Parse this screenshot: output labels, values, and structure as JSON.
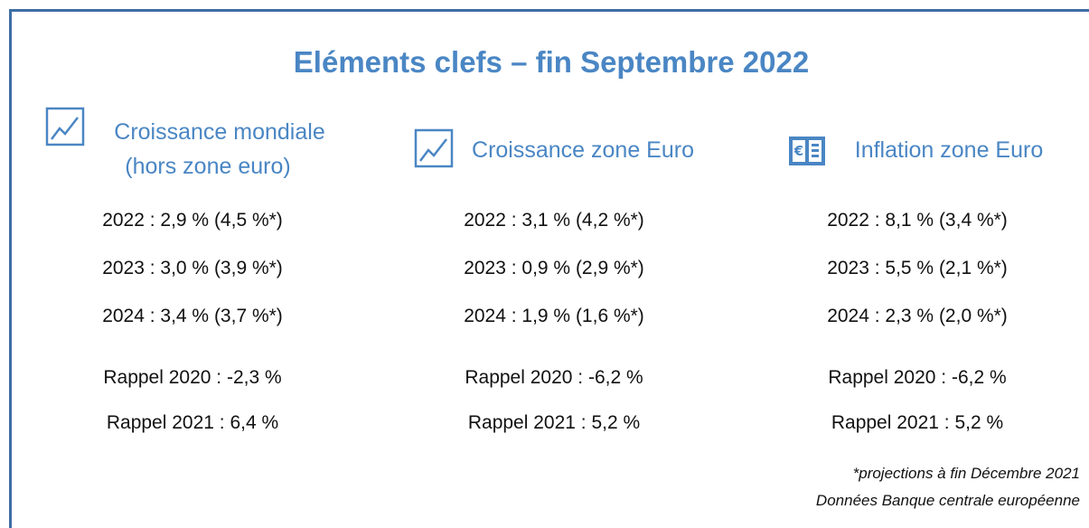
{
  "header": {
    "title": "Eléments clefs – fin Septembre 2022"
  },
  "columns": [
    {
      "title": [
        "Croissance mondiale",
        "(hors zone euro)"
      ],
      "rows": [
        "2022 : 2,9 % (4,5 %*)",
        "2023 : 3,0 % (3,9 %*)",
        "2024 : 3,4 % (3,7 %*)"
      ],
      "reminders": [
        "Rappel 2020 : -2,3 %",
        "Rappel 2021 : 6,4 %"
      ]
    },
    {
      "title": [
        "Croissance zone Euro"
      ],
      "rows": [
        "2022 : 3,1 % (4,2 %*)",
        "2023 : 0,9 % (2,9 %*)",
        "2024 : 1,9 % (1,6 %*)"
      ],
      "reminders": [
        "Rappel 2020 : -6,2 %",
        "Rappel 2021 : 5,2 %"
      ]
    },
    {
      "title": [
        "Inflation zone Euro"
      ],
      "rows": [
        "2022 : 8,1 % (3,4 %*)",
        "2023 : 5,5 % (2,1 %*)",
        "2024 : 2,3 % (2,0 %*)"
      ],
      "reminders": [
        "Rappel 2020 : -6,2 %",
        "Rappel 2021 : 5,2 %"
      ]
    }
  ],
  "footer": {
    "notes": [
      "*projections à fin Décembre 2021",
      "Données Banque centrale européenne"
    ]
  }
}
